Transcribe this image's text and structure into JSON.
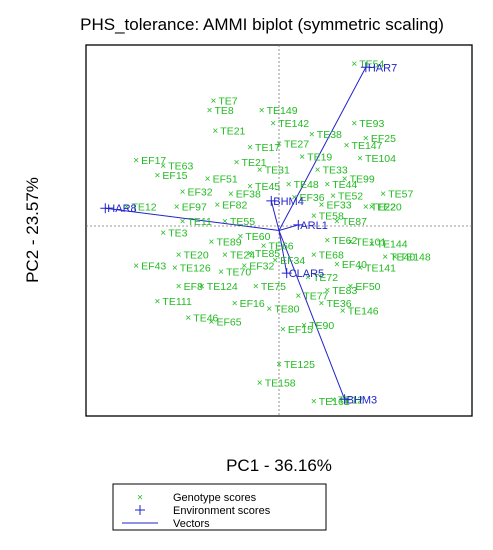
{
  "chart_data": {
    "type": "scatter",
    "title": "PHS_tolerance: AMMI biplot (symmetric scaling)",
    "xlabel": "PC1 - 36.16%",
    "ylabel": "PC2 - 23.57%",
    "xlim": [
      -1,
      1
    ],
    "ylim": [
      -1,
      1
    ],
    "grid": false,
    "origin_lines": true,
    "legend_position": "bottom",
    "legend": [
      {
        "label": "Genotype scores",
        "marker": "x",
        "color": "#22bb22"
      },
      {
        "label": "Environment scores",
        "marker": "+",
        "color": "#2222cc"
      },
      {
        "label": "Vectors",
        "marker": "line",
        "color": "#2222cc"
      }
    ],
    "colors": {
      "genotype": "#22bb22",
      "environment": "#2222cc",
      "vector": "#2222cc"
    },
    "environments": [
      {
        "name": "HAR7",
        "x": 0.45,
        "y": 0.88
      },
      {
        "name": "HAR8",
        "x": -0.9,
        "y": 0.12
      },
      {
        "name": "BHM4",
        "x": -0.04,
        "y": 0.16
      },
      {
        "name": "ARL1",
        "x": 0.1,
        "y": 0.03
      },
      {
        "name": "CLAR5",
        "x": 0.04,
        "y": -0.23
      },
      {
        "name": "BHM3",
        "x": 0.34,
        "y": -0.91
      }
    ],
    "genotypes": [
      {
        "name": "TE54",
        "x": 0.39,
        "y": 0.9
      },
      {
        "name": "TE7",
        "x": -0.34,
        "y": 0.7
      },
      {
        "name": "TE8",
        "x": -0.36,
        "y": 0.65
      },
      {
        "name": "TE149",
        "x": -0.09,
        "y": 0.65
      },
      {
        "name": "TE142",
        "x": -0.03,
        "y": 0.58
      },
      {
        "name": "TE93",
        "x": 0.39,
        "y": 0.58
      },
      {
        "name": "TE21",
        "x": -0.33,
        "y": 0.54
      },
      {
        "name": "EF25",
        "x": 0.45,
        "y": 0.5
      },
      {
        "name": "TE147",
        "x": 0.35,
        "y": 0.46
      },
      {
        "name": "TE104",
        "x": 0.42,
        "y": 0.39
      },
      {
        "name": "EF17",
        "x": -0.74,
        "y": 0.38
      },
      {
        "name": "TE63",
        "x": -0.6,
        "y": 0.35
      },
      {
        "name": "TE21",
        "x": -0.22,
        "y": 0.37
      },
      {
        "name": "EF15",
        "x": -0.63,
        "y": 0.3
      },
      {
        "name": "EF51",
        "x": -0.37,
        "y": 0.28
      },
      {
        "name": "TE99",
        "x": 0.34,
        "y": 0.28
      },
      {
        "name": "EF32",
        "x": -0.5,
        "y": 0.21
      },
      {
        "name": "TE57",
        "x": 0.54,
        "y": 0.2
      },
      {
        "name": "TE12",
        "x": -0.79,
        "y": 0.13
      },
      {
        "name": "EF97",
        "x": -0.53,
        "y": 0.13
      },
      {
        "name": "EF82",
        "x": -0.32,
        "y": 0.14
      },
      {
        "name": "TE20",
        "x": 0.48,
        "y": 0.13
      },
      {
        "name": "TE22",
        "x": 0.45,
        "y": 0.13
      },
      {
        "name": "TE11",
        "x": -0.5,
        "y": 0.05
      },
      {
        "name": "TE3",
        "x": -0.6,
        "y": -0.01
      },
      {
        "name": "TE101",
        "x": 0.37,
        "y": -0.06
      },
      {
        "name": "TE144",
        "x": 0.48,
        "y": -0.07
      },
      {
        "name": "TE20",
        "x": -0.52,
        "y": -0.13
      },
      {
        "name": "TE24",
        "x": -0.28,
        "y": -0.13
      },
      {
        "name": "TE40",
        "x": 0.55,
        "y": -0.14
      },
      {
        "name": "TE148",
        "x": 0.6,
        "y": -0.14
      },
      {
        "name": "EF32",
        "x": -0.18,
        "y": -0.19
      },
      {
        "name": "EF43",
        "x": -0.74,
        "y": -0.19
      },
      {
        "name": "TE126",
        "x": -0.54,
        "y": -0.2
      },
      {
        "name": "TE141",
        "x": 0.42,
        "y": -0.2
      },
      {
        "name": "EF8",
        "x": -0.52,
        "y": -0.3
      },
      {
        "name": "TE124",
        "x": -0.4,
        "y": -0.3
      },
      {
        "name": "EF50",
        "x": 0.37,
        "y": -0.3
      },
      {
        "name": "TE111",
        "x": -0.63,
        "y": -0.38
      },
      {
        "name": "EF16",
        "x": -0.23,
        "y": -0.39
      },
      {
        "name": "TE36",
        "x": 0.22,
        "y": -0.39
      },
      {
        "name": "TE146",
        "x": 0.33,
        "y": -0.43
      },
      {
        "name": "TE46",
        "x": -0.47,
        "y": -0.47
      },
      {
        "name": "EF65",
        "x": -0.35,
        "y": -0.49
      },
      {
        "name": "TE90",
        "x": 0.13,
        "y": -0.51
      },
      {
        "name": "EF15",
        "x": 0.02,
        "y": -0.53
      },
      {
        "name": "TE125",
        "x": 0.0,
        "y": -0.72
      },
      {
        "name": "TE158",
        "x": -0.1,
        "y": -0.82
      },
      {
        "name": "TE161",
        "x": 0.18,
        "y": -0.92
      },
      {
        "name": "TE12",
        "x": 0.28,
        "y": -0.91
      },
      {
        "name": "TE17",
        "x": -0.15,
        "y": 0.45
      },
      {
        "name": "TE27",
        "x": 0.0,
        "y": 0.47
      },
      {
        "name": "TE38",
        "x": 0.17,
        "y": 0.52
      },
      {
        "name": "TE19",
        "x": 0.12,
        "y": 0.4
      },
      {
        "name": "TE31",
        "x": -0.1,
        "y": 0.33
      },
      {
        "name": "TE33",
        "x": 0.2,
        "y": 0.33
      },
      {
        "name": "TE44",
        "x": 0.25,
        "y": 0.25
      },
      {
        "name": "TE45",
        "x": -0.15,
        "y": 0.24
      },
      {
        "name": "TE48",
        "x": 0.05,
        "y": 0.25
      },
      {
        "name": "TE52",
        "x": 0.28,
        "y": 0.19
      },
      {
        "name": "TE55",
        "x": -0.28,
        "y": 0.05
      },
      {
        "name": "TE58",
        "x": 0.18,
        "y": 0.08
      },
      {
        "name": "TE60",
        "x": -0.2,
        "y": -0.03
      },
      {
        "name": "TE62",
        "x": 0.25,
        "y": -0.05
      },
      {
        "name": "TE66",
        "x": -0.08,
        "y": -0.08
      },
      {
        "name": "TE68",
        "x": 0.18,
        "y": -0.13
      },
      {
        "name": "TE70",
        "x": -0.3,
        "y": -0.22
      },
      {
        "name": "TE72",
        "x": 0.15,
        "y": -0.25
      },
      {
        "name": "TE75",
        "x": -0.12,
        "y": -0.3
      },
      {
        "name": "TE77",
        "x": 0.1,
        "y": -0.35
      },
      {
        "name": "TE80",
        "x": -0.05,
        "y": -0.42
      },
      {
        "name": "TE83",
        "x": 0.25,
        "y": -0.32
      },
      {
        "name": "TE85",
        "x": -0.15,
        "y": -0.12
      },
      {
        "name": "TE87",
        "x": 0.3,
        "y": 0.05
      },
      {
        "name": "TE89",
        "x": -0.35,
        "y": -0.06
      },
      {
        "name": "EF33",
        "x": 0.22,
        "y": 0.14
      },
      {
        "name": "EF34",
        "x": -0.02,
        "y": -0.16
      },
      {
        "name": "EF36",
        "x": 0.08,
        "y": 0.18
      },
      {
        "name": "EF38",
        "x": -0.25,
        "y": 0.2
      },
      {
        "name": "EF40",
        "x": 0.3,
        "y": -0.18
      }
    ]
  }
}
